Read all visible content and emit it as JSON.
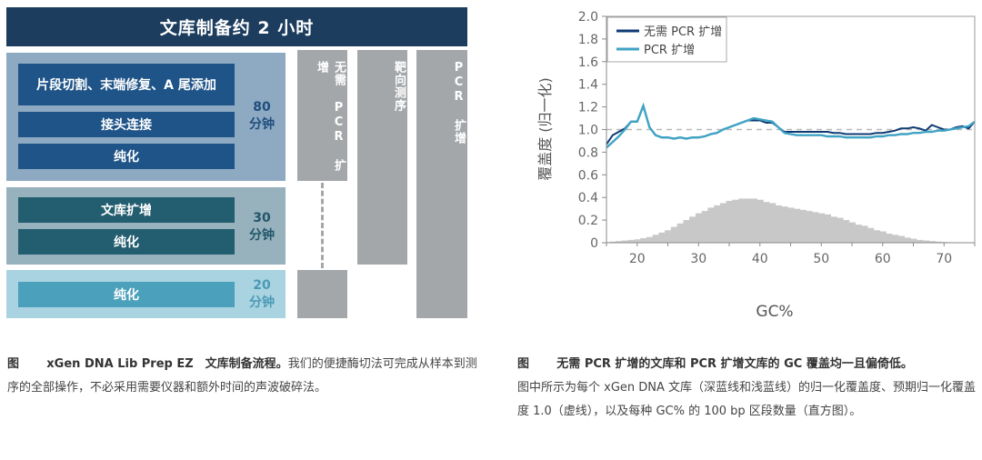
{
  "workflow": {
    "header": "文库制备约 2 小时",
    "blocks": [
      {
        "steps": [
          "片段切割、末端修复、A 尾添加",
          "接头连接",
          "纯化"
        ],
        "time_value": "80",
        "time_unit": "分钟",
        "bg": "#8eaac2",
        "bar": "#1f5488",
        "text": "#1f4e7e"
      },
      {
        "steps": [
          "文库扩增",
          "纯化"
        ],
        "time_value": "30",
        "time_unit": "分钟",
        "bg": "#97b2bd",
        "bar": "#235e70",
        "text": "#23566a"
      },
      {
        "steps": [
          "纯化"
        ],
        "time_value": "20",
        "time_unit": "分钟",
        "bg": "#a9d3e0",
        "bar": "#4ba0bb",
        "text": "#4a9ab5"
      }
    ],
    "columns": [
      "无需 PCR 扩增",
      "靶向测序",
      "PCR 扩增"
    ]
  },
  "caption_left": {
    "label": "图",
    "bold": "xGen DNA Lib Prep EZ　文库制备流程。",
    "text": "我们的便捷酶切法可完成从样本到测序的全部操作，不必采用需要仪器和额外时间的声波破碎法。"
  },
  "caption_right": {
    "label": "图",
    "bold": "无需 PCR 扩增的文库和 PCR 扩增文库的 GC 覆盖均一且偏倚低。",
    "text": "图中所示为每个 xGen DNA 文库（深蓝线和浅蓝线）的归一化覆盖度、预期归一化覆盖度 1.0（虚线），以及每种 GC% 的 100 bp 区段数量（直方图）。"
  },
  "chart_data": {
    "type": "line",
    "title": "",
    "xlabel": "GC%",
    "ylabel": "覆盖度 (归一化)",
    "xlim": [
      15,
      75
    ],
    "ylim": [
      0,
      2.0
    ],
    "xticks": [
      20,
      30,
      40,
      50,
      60,
      70
    ],
    "yticks": [
      "0",
      "0.2",
      "0.4",
      "0.6",
      "0.8",
      "1.0",
      "1.2",
      "1.4",
      "1.6",
      "1.8",
      "2.0"
    ],
    "grid": false,
    "legend_position": "upper left",
    "reference_line": {
      "y": 1.0,
      "style": "dashed",
      "label": "预期归一化覆盖度 1.0"
    },
    "x": [
      15,
      16,
      17,
      18,
      19,
      20,
      21,
      22,
      23,
      24,
      25,
      26,
      27,
      28,
      29,
      30,
      31,
      32,
      33,
      34,
      35,
      36,
      37,
      38,
      39,
      40,
      41,
      42,
      43,
      44,
      45,
      46,
      47,
      48,
      49,
      50,
      51,
      52,
      53,
      54,
      55,
      56,
      57,
      58,
      59,
      60,
      61,
      62,
      63,
      64,
      65,
      66,
      67,
      68,
      69,
      70,
      71,
      72,
      73,
      74,
      75
    ],
    "series": [
      {
        "name": "无需 PCR 扩增",
        "color": "#0e3a73",
        "values": [
          0.87,
          0.95,
          0.98,
          1.01,
          1.07,
          1.07,
          1.21,
          1.02,
          0.95,
          0.93,
          0.93,
          0.92,
          0.93,
          0.92,
          0.93,
          0.93,
          0.94,
          0.96,
          0.97,
          1.0,
          1.02,
          1.04,
          1.06,
          1.08,
          1.08,
          1.08,
          1.06,
          1.06,
          1.02,
          0.98,
          0.98,
          0.98,
          0.98,
          0.98,
          0.98,
          0.98,
          0.98,
          0.97,
          0.97,
          0.96,
          0.96,
          0.96,
          0.96,
          0.96,
          0.97,
          0.97,
          0.98,
          0.99,
          1.01,
          1.01,
          1.02,
          1.01,
          0.99,
          1.04,
          1.02,
          1.0,
          1.0,
          1.02,
          1.03,
          1.01,
          1.07
        ]
      },
      {
        "name": "PCR 扩增",
        "color": "#3fa3c4",
        "values": [
          0.84,
          0.89,
          0.94,
          1.0,
          1.07,
          1.07,
          1.21,
          1.02,
          0.95,
          0.93,
          0.93,
          0.92,
          0.93,
          0.92,
          0.93,
          0.93,
          0.94,
          0.96,
          0.97,
          1.0,
          1.02,
          1.04,
          1.06,
          1.08,
          1.1,
          1.09,
          1.08,
          1.07,
          1.02,
          0.97,
          0.96,
          0.95,
          0.95,
          0.95,
          0.95,
          0.95,
          0.94,
          0.94,
          0.94,
          0.93,
          0.93,
          0.93,
          0.93,
          0.93,
          0.94,
          0.94,
          0.95,
          0.95,
          0.96,
          0.96,
          0.97,
          0.97,
          0.98,
          0.98,
          0.99,
          0.99,
          1.0,
          1.01,
          1.02,
          1.03,
          1.07
        ]
      },
      {
        "name": "histogram",
        "type": "bar",
        "color": "#c8c8c8",
        "values": [
          0.005,
          0.01,
          0.015,
          0.02,
          0.025,
          0.03,
          0.04,
          0.05,
          0.07,
          0.09,
          0.11,
          0.14,
          0.17,
          0.2,
          0.23,
          0.26,
          0.28,
          0.31,
          0.33,
          0.35,
          0.37,
          0.38,
          0.39,
          0.39,
          0.39,
          0.38,
          0.36,
          0.35,
          0.33,
          0.32,
          0.31,
          0.3,
          0.29,
          0.28,
          0.27,
          0.26,
          0.25,
          0.23,
          0.22,
          0.2,
          0.18,
          0.16,
          0.15,
          0.13,
          0.11,
          0.1,
          0.08,
          0.07,
          0.06,
          0.045,
          0.035,
          0.025,
          0.02,
          0.015,
          0.01,
          0.007,
          0.005,
          0.003,
          0.002,
          0.001,
          0.0
        ]
      }
    ]
  }
}
